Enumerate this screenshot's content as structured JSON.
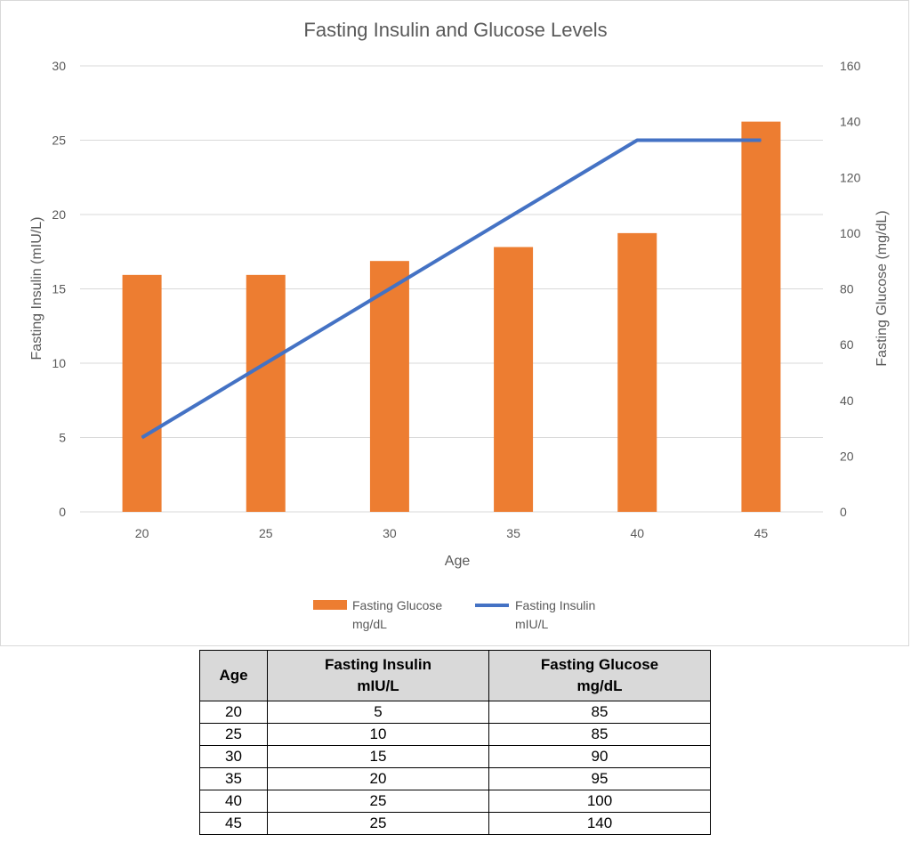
{
  "chart_data": {
    "type": "bar+line",
    "title": "Fasting Insulin and Glucose Levels",
    "xlabel": "Age",
    "ylabel_left": "Fasting Insulin (mIU/L)",
    "ylabel_right": "Fasting Glucose (mg/dL)",
    "categories": [
      "20",
      "25",
      "30",
      "35",
      "40",
      "45"
    ],
    "left_ticks": [
      "0",
      "5",
      "10",
      "15",
      "20",
      "25",
      "30"
    ],
    "right_ticks": [
      "0",
      "20",
      "40",
      "60",
      "80",
      "100",
      "120",
      "140",
      "160"
    ],
    "ylim_left": [
      0,
      30
    ],
    "ylim_right": [
      0,
      160
    ],
    "grid": true,
    "legend_position": "bottom",
    "series": [
      {
        "name_line1": "Fasting Glucose",
        "name_line2": "mg/dL",
        "type": "bar",
        "axis": "right",
        "color": "#ed7d31",
        "values": [
          85,
          85,
          90,
          95,
          100,
          140
        ]
      },
      {
        "name_line1": "Fasting Insulin",
        "name_line2": "mIU/L",
        "type": "line",
        "axis": "left",
        "color": "#4472c4",
        "values": [
          5,
          10,
          15,
          20,
          25,
          25
        ]
      }
    ]
  },
  "table": {
    "headers": [
      {
        "line1": "Age",
        "line2": ""
      },
      {
        "line1": "Fasting Insulin",
        "line2": "mIU/L"
      },
      {
        "line1": "Fasting Glucose",
        "line2": "mg/dL"
      }
    ],
    "rows": [
      [
        "20",
        "5",
        "85"
      ],
      [
        "25",
        "10",
        "85"
      ],
      [
        "30",
        "15",
        "90"
      ],
      [
        "35",
        "20",
        "95"
      ],
      [
        "40",
        "25",
        "100"
      ],
      [
        "45",
        "25",
        "140"
      ]
    ]
  }
}
